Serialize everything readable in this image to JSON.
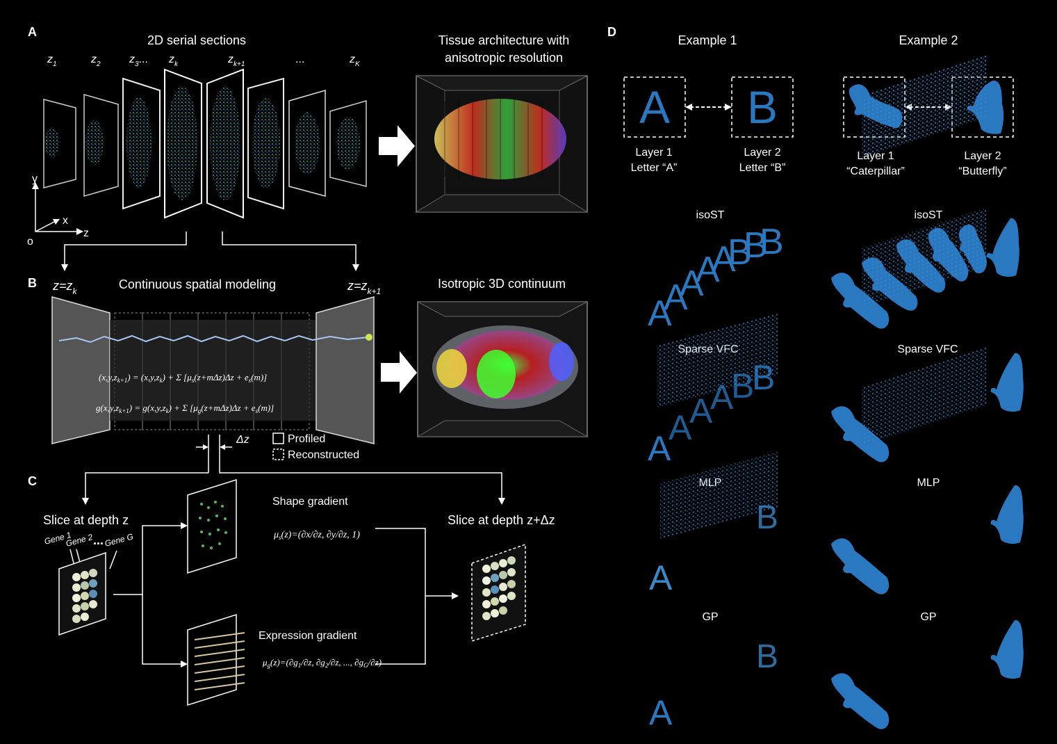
{
  "panelA": {
    "label": "A",
    "title": "2D serial sections",
    "z_labels": [
      "z",
      "z",
      "z",
      "z",
      "z",
      "...",
      "z"
    ],
    "z_subs": [
      "1",
      "2",
      "3",
      "k",
      "k+1",
      "",
      "K"
    ],
    "z3_ellipsis": "...",
    "right_title_1": "Tissue architecture with",
    "right_title_2": "anisotropic resolution",
    "axis": {
      "y": "y",
      "x": "x",
      "z": "z",
      "o": "o"
    }
  },
  "panelB": {
    "label": "B",
    "title": "Continuous spatial modeling",
    "left_z": "z=z",
    "left_z_sub": "k",
    "right_z": "z=z",
    "right_z_sub": "k+1",
    "right_title": "Isotropic 3D continuum",
    "eq1": "(x,y,z_{k+1}) = (x,y,z_k) + Σ_{m=0}^{M−1} [μ_s(z+mΔz)Δz + e_s(m)]",
    "eq2": "g(x,y,z_{k+1}) = g(x,y,z_k) + Σ_{m=0}^{M−1} [μ_g(z+mΔz)Δz + e_s(m)]",
    "delta": "Δz",
    "legend_profiled": "Profiled",
    "legend_reconstructed": "Reconstructed"
  },
  "panelC": {
    "label": "C",
    "slice_z": "Slice at depth z",
    "gene1": "Gene 1",
    "gene2": "Gene 2",
    "geneG": "Gene G",
    "gene_dots": "...",
    "shape_gradient": "Shape gradient",
    "shape_eq": "μs(z)=(∂x/∂z, ∂y/∂z, 1)",
    "expr_gradient": "Expression gradient",
    "expr_eq": "μg(z)=(∂g1/∂z, ∂g2/∂z, ..., ∂gG/∂z)",
    "slice_zdz": "Slice at depth z+Δz"
  },
  "panelD": {
    "label": "D",
    "example1": "Example 1",
    "example2": "Example 2",
    "e1_layer1": "Layer 1",
    "e1_layer1_sub": "Letter “A”",
    "e1_layer2": "Layer 2",
    "e1_layer2_sub": "Letter “B”",
    "e2_layer1": "Layer 1",
    "e2_layer1_sub": "“Caterpillar”",
    "e2_layer2": "Layer 2",
    "e2_layer2_sub": "“Butterfly”",
    "letterA": "A",
    "letterB": "B",
    "methods": [
      "isoST",
      "Sparse VFC",
      "MLP",
      "GP"
    ]
  },
  "colors": {
    "shape_blue": "#2a78c0",
    "background": "#000000"
  }
}
